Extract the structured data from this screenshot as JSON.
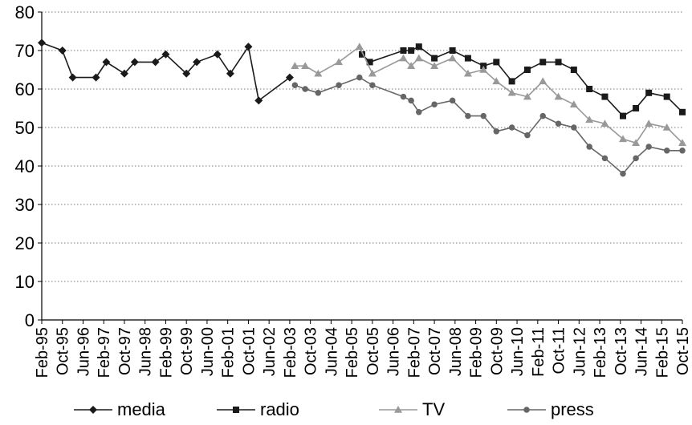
{
  "chart_data": {
    "type": "line",
    "title": "",
    "xlabel": "",
    "ylabel": "",
    "ylim": [
      0,
      80
    ],
    "yticks": [
      "0",
      "10",
      "20",
      "30",
      "40",
      "50",
      "60",
      "70",
      "80"
    ],
    "xtick_labels": [
      "Feb-95",
      "Oct-95",
      "Jun-96",
      "Feb-97",
      "Oct-97",
      "Jun-98",
      "Feb-99",
      "Oct-99",
      "Jun-00",
      "Feb-01",
      "Oct-01",
      "Jun-02",
      "Feb-03",
      "Oct-03",
      "Jun-04",
      "Feb-05",
      "Oct-05",
      "Jun-06",
      "Feb-07",
      "Oct-07",
      "Jun-08",
      "Feb-09",
      "Oct-09",
      "Jun-10",
      "Feb-11",
      "Oct-11",
      "Jun-12",
      "Feb-13",
      "Oct-13",
      "Jun-14",
      "Feb-15",
      "Oct-15"
    ],
    "grid": "horizontal dotted",
    "legend_position": "bottom",
    "series": [
      {
        "name": "media",
        "color": "#1a1a1a",
        "marker": "diamond",
        "segments": [
          [
            [
              "Feb-95",
              72
            ],
            [
              "Oct-95",
              70
            ],
            [
              "Feb-96",
              63
            ],
            [
              "Nov-96",
              63
            ],
            [
              "Mar-97",
              67
            ],
            [
              "Oct-97",
              64
            ],
            [
              "Feb-98",
              67
            ],
            [
              "Oct-98",
              67
            ],
            [
              "Feb-99",
              69
            ],
            [
              "Oct-99",
              64
            ],
            [
              "Feb-00",
              67
            ],
            [
              "Oct-00",
              69
            ],
            [
              "Mar-01",
              64
            ],
            [
              "Oct-01",
              71
            ],
            [
              "Feb-02",
              57
            ],
            [
              "Feb-03",
              63
            ]
          ]
        ]
      },
      {
        "name": "radio",
        "color": "#1a1a1a",
        "marker": "square",
        "segments": [
          [
            [
              "Jun-05",
              69
            ],
            [
              "Sep-05",
              67
            ],
            [
              "Oct-06",
              70
            ],
            [
              "Jan-07",
              70
            ],
            [
              "Apr-07",
              71
            ],
            [
              "Oct-07",
              68
            ],
            [
              "May-08",
              70
            ],
            [
              "Nov-08",
              68
            ],
            [
              "May-09",
              66
            ],
            [
              "Oct-09",
              67
            ],
            [
              "Apr-10",
              62
            ],
            [
              "Oct-10",
              65
            ],
            [
              "Apr-11",
              67
            ],
            [
              "Oct-11",
              67
            ],
            [
              "Apr-12",
              65
            ],
            [
              "Oct-12",
              60
            ],
            [
              "Apr-13",
              58
            ],
            [
              "Nov-13",
              53
            ],
            [
              "Apr-14",
              55
            ],
            [
              "Sep-14",
              59
            ],
            [
              "Apr-15",
              58
            ],
            [
              "Oct-15",
              54
            ]
          ]
        ]
      },
      {
        "name": "TV",
        "color": "#999999",
        "marker": "triangle",
        "segments": [
          [
            [
              "Apr-03",
              66
            ],
            [
              "Aug-03",
              66
            ],
            [
              "Jan-04",
              64
            ],
            [
              "Sep-04",
              67
            ],
            [
              "May-05",
              71
            ],
            [
              "Oct-05",
              64
            ],
            [
              "Oct-06",
              68
            ],
            [
              "Jan-07",
              66
            ],
            [
              "Apr-07",
              68
            ],
            [
              "Oct-07",
              66
            ],
            [
              "May-08",
              68
            ],
            [
              "Nov-08",
              64
            ],
            [
              "May-09",
              65
            ],
            [
              "Oct-09",
              62
            ],
            [
              "Apr-10",
              59
            ],
            [
              "Oct-10",
              58
            ],
            [
              "Apr-11",
              62
            ],
            [
              "Oct-11",
              58
            ],
            [
              "Apr-12",
              56
            ],
            [
              "Oct-12",
              52
            ],
            [
              "Apr-13",
              51
            ],
            [
              "Nov-13",
              47
            ],
            [
              "Apr-14",
              46
            ],
            [
              "Sep-14",
              51
            ],
            [
              "Apr-15",
              50
            ],
            [
              "Oct-15",
              46
            ]
          ]
        ]
      },
      {
        "name": "press",
        "color": "#666666",
        "marker": "circle",
        "segments": [
          [
            [
              "Apr-03",
              61
            ],
            [
              "Aug-03",
              60
            ],
            [
              "Jan-04",
              59
            ],
            [
              "Sep-04",
              61
            ],
            [
              "May-05",
              63
            ],
            [
              "Oct-05",
              61
            ],
            [
              "Oct-06",
              58
            ],
            [
              "Jan-07",
              57
            ],
            [
              "Apr-07",
              54
            ],
            [
              "Oct-07",
              56
            ],
            [
              "May-08",
              57
            ],
            [
              "Nov-08",
              53
            ],
            [
              "May-09",
              53
            ],
            [
              "Oct-09",
              49
            ],
            [
              "Apr-10",
              50
            ],
            [
              "Oct-10",
              48
            ],
            [
              "Apr-11",
              53
            ],
            [
              "Oct-11",
              51
            ],
            [
              "Apr-12",
              50
            ],
            [
              "Oct-12",
              45
            ],
            [
              "Apr-13",
              42
            ],
            [
              "Nov-13",
              38
            ],
            [
              "Apr-14",
              42
            ],
            [
              "Sep-14",
              45
            ],
            [
              "Apr-15",
              44
            ],
            [
              "Oct-15",
              44
            ]
          ]
        ]
      }
    ]
  }
}
